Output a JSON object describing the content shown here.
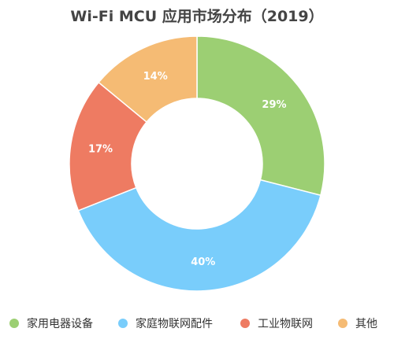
{
  "chart_data": {
    "type": "pie",
    "title": "Wi-Fi MCU 应用市场分布（2019）",
    "donut": true,
    "legend_position": "bottom",
    "categories": [
      "家用电器设备",
      "家庭物联网配件",
      "工业物联网",
      "其他"
    ],
    "values": [
      29,
      40,
      17,
      14
    ],
    "labels": [
      "29%",
      "40%",
      "17%",
      "14%"
    ],
    "colors": [
      "#9ccf73",
      "#79cdfb",
      "#ee7b62",
      "#f5bb74"
    ]
  }
}
